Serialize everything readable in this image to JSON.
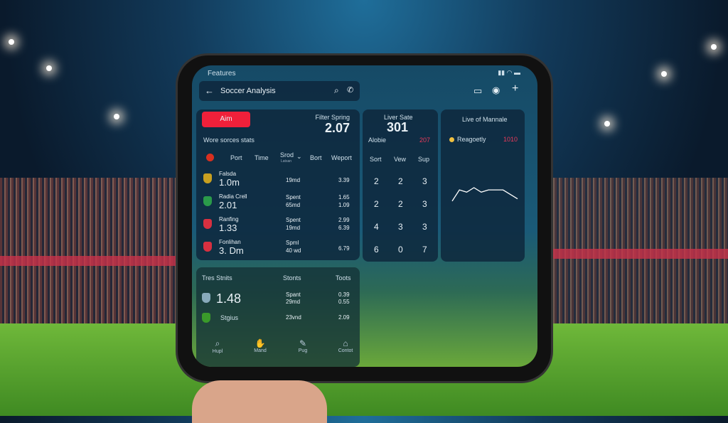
{
  "status": {
    "title": "Features"
  },
  "header": {
    "title": "Soccer Analysis"
  },
  "main_card": {
    "button": "Aim",
    "filter_label": "Filter Spring",
    "filter_value": "2.07",
    "subtitle": "Wore sorces stats",
    "columns": [
      "Port",
      "Time",
      "Srod",
      "Bort",
      "Weport"
    ],
    "column_sub": "Latsan",
    "rows": [
      {
        "name": "Falsda",
        "value": "1.0m",
        "mid": [
          "19md"
        ],
        "right": [
          "3.39"
        ],
        "badge": "#c8a020"
      },
      {
        "name": "Radia Crell",
        "value": "2.01",
        "mid": [
          "Spent",
          "65md"
        ],
        "right": [
          "1.65",
          "1.09"
        ],
        "badge": "#2a9a4a"
      },
      {
        "name": "Ranfing",
        "value": "1.33",
        "mid": [
          "Spent",
          "19md"
        ],
        "right": [
          "2.99",
          "6.39"
        ],
        "badge": "#d83040"
      },
      {
        "name": "Fonlihan",
        "value": "3. Dm",
        "mid": [
          "Spml",
          "40 wd"
        ],
        "right": [
          "6.79"
        ],
        "badge": "#d83040"
      }
    ]
  },
  "live_card": {
    "label": "Liver Sate",
    "value": "301",
    "sub_label": "Alobie",
    "sub_value": "207",
    "columns": [
      "Sort",
      "Vew",
      "Sup"
    ],
    "grid": [
      [
        "2",
        "2",
        "3"
      ],
      [
        "2",
        "2",
        "3"
      ],
      [
        "4",
        "3",
        "3"
      ],
      [
        "6",
        "0",
        "7"
      ]
    ]
  },
  "chart_card": {
    "title": "Live of Mannale",
    "legend": "Reagoetly",
    "legend_value": "1010",
    "accent": "#e83a5a",
    "chart_data": {
      "type": "line",
      "values": [
        1,
        6,
        5,
        7,
        5,
        6,
        6,
        6,
        4,
        2
      ]
    }
  },
  "bottom_card": {
    "title": "Tres Stnits",
    "col2": "Stonts",
    "col3": "Toots",
    "rows": [
      {
        "value": "1.48",
        "mid": [
          "Spant",
          "29md"
        ],
        "right": [
          "0.39",
          "0.55"
        ]
      },
      {
        "value": "Stgius",
        "mid": [
          "23vnd"
        ],
        "right": [
          "2.09"
        ]
      }
    ]
  },
  "nav": [
    {
      "label": "Hupl",
      "icon": "search-icon"
    },
    {
      "label": "Mand",
      "icon": "hand-icon"
    },
    {
      "label": "Pug",
      "icon": "edit-icon"
    },
    {
      "label": "Contot",
      "icon": "home-icon"
    }
  ],
  "colors": {
    "red_button": "#f0203a",
    "accent_red": "#e83a5a",
    "dot": "#f0c040"
  }
}
